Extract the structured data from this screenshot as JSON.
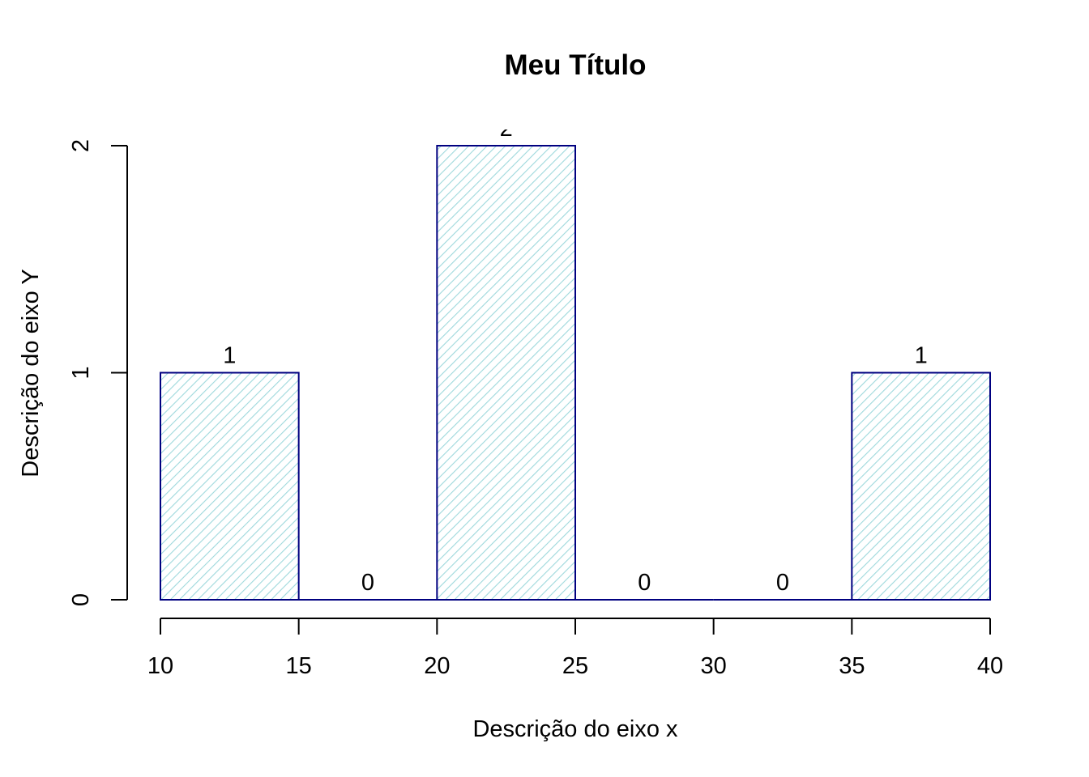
{
  "chart_data": {
    "type": "bar",
    "title": "Meu Título",
    "xlabel": "Descrição do eixo x",
    "ylabel": "Descrição do eixo Y",
    "bins": [
      {
        "start": 10,
        "end": 15,
        "value": 1,
        "label": "1"
      },
      {
        "start": 15,
        "end": 20,
        "value": 0,
        "label": "0"
      },
      {
        "start": 20,
        "end": 25,
        "value": 2,
        "label": "2"
      },
      {
        "start": 25,
        "end": 30,
        "value": 0,
        "label": "0"
      },
      {
        "start": 30,
        "end": 35,
        "value": 0,
        "label": "0"
      },
      {
        "start": 35,
        "end": 40,
        "value": 1,
        "label": "1"
      }
    ],
    "x_ticks": [
      "10",
      "15",
      "20",
      "25",
      "30",
      "35",
      "40"
    ],
    "y_ticks": [
      "0",
      "1",
      "2"
    ],
    "xlim": [
      10,
      40
    ],
    "ylim": [
      0,
      2
    ],
    "grid": false,
    "bar_border_color": "#000080",
    "hatch_color": "#9ed8dc"
  }
}
